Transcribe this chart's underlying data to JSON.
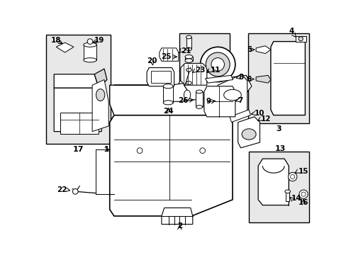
{
  "fig_width": 4.89,
  "fig_height": 3.6,
  "dpi": 100,
  "bg": "white",
  "lc": "black",
  "shaded": "#d8d8d8",
  "white": "white",
  "inset_bg": "#e8e8e8"
}
